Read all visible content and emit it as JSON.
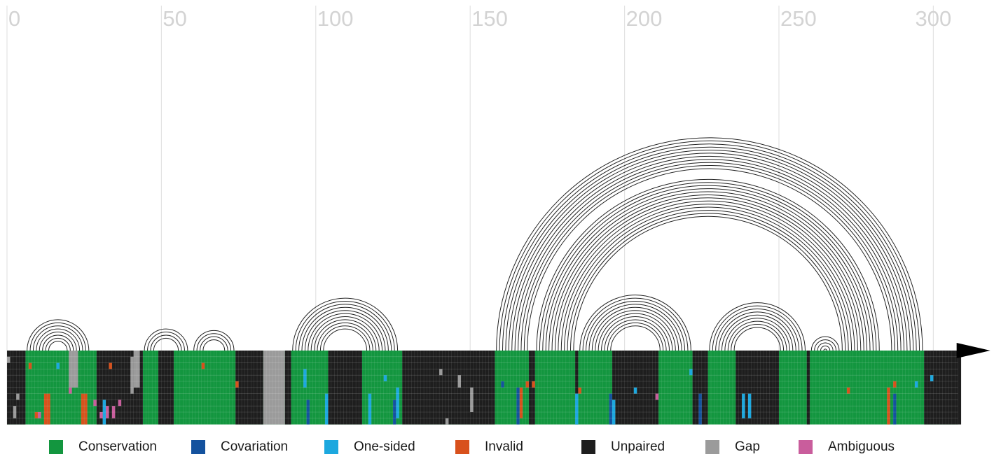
{
  "axis": {
    "ticks": [
      0,
      50,
      100,
      150,
      200,
      250,
      300
    ],
    "range": [
      0,
      308
    ]
  },
  "colors": {
    "Conservation": "#13963f",
    "Covariation": "#14529e",
    "One-sided": "#1ca8df",
    "Invalid": "#d8511c",
    "Unpaired": "#1e1e1e",
    "Gap": "#9b9b9b",
    "Ambiguous": "#c95d9c",
    "tick_text": "#d3d3d3",
    "gridline": "#e3e3e3",
    "arc": "#222222"
  },
  "legend": [
    {
      "label": "Conservation",
      "color": "#13963f"
    },
    {
      "label": "Covariation",
      "color": "#14529e"
    },
    {
      "label": "One-sided",
      "color": "#1ca8df"
    },
    {
      "label": "Invalid",
      "color": "#d8511c"
    },
    {
      "label": "Unpaired",
      "color": "#1e1e1e"
    },
    {
      "label": "Gap",
      "color": "#9b9b9b"
    },
    {
      "label": "Ambiguous",
      "color": "#c95d9c"
    }
  ],
  "sequences": 12,
  "helices": [
    {
      "name": "helix-1",
      "five_prime": [
        6,
        13
      ],
      "three_prime": [
        19,
        26
      ]
    },
    {
      "name": "helix-2",
      "five_prime": [
        44,
        47
      ],
      "three_prime": [
        54,
        58
      ]
    },
    {
      "name": "helix-3",
      "five_prime": [
        60,
        63
      ],
      "three_prime": [
        69,
        73
      ]
    },
    {
      "name": "helix-4",
      "five_prime": [
        92,
        102
      ],
      "three_prime": [
        115,
        126
      ]
    },
    {
      "name": "helix-5",
      "five_prime": [
        158,
        168
      ],
      "three_prime": [
        285,
        296
      ]
    },
    {
      "name": "helix-6",
      "five_prime": [
        171,
        183
      ],
      "three_prime": [
        270,
        282
      ]
    },
    {
      "name": "helix-7",
      "five_prime": [
        185,
        195
      ],
      "three_prime": [
        211,
        221
      ]
    },
    {
      "name": "helix-8",
      "five_prime": [
        227,
        235
      ],
      "three_prime": [
        250,
        258
      ]
    },
    {
      "name": "helix-9",
      "five_prime": [
        260,
        264
      ],
      "three_prime": [
        265,
        269
      ]
    }
  ],
  "gap_columns": [
    {
      "start": 83,
      "end": 89,
      "rows": "all"
    },
    {
      "start": 20,
      "end": 22,
      "rows": "upper"
    },
    {
      "start": 41,
      "end": 42,
      "rows": "upper"
    }
  ],
  "unpaired_columns": [
    {
      "start": 0,
      "end": 5
    },
    {
      "start": 29,
      "end": 43
    },
    {
      "start": 49,
      "end": 53
    },
    {
      "start": 74,
      "end": 82
    },
    {
      "start": 90,
      "end": 91
    },
    {
      "start": 104,
      "end": 114
    },
    {
      "start": 128,
      "end": 157
    },
    {
      "start": 169,
      "end": 170
    },
    {
      "start": 184,
      "end": 184
    },
    {
      "start": 196,
      "end": 210
    },
    {
      "start": 222,
      "end": 226
    },
    {
      "start": 236,
      "end": 249
    },
    {
      "start": 259,
      "end": 259
    },
    {
      "start": 297,
      "end": 308
    }
  ],
  "features": [
    {
      "type": "Invalid",
      "col": 7,
      "rows": [
        2,
        2
      ]
    },
    {
      "type": "Invalid",
      "col": 12,
      "rows": [
        7,
        11
      ]
    },
    {
      "type": "Invalid",
      "col": 13,
      "rows": [
        7,
        11
      ]
    },
    {
      "type": "Invalid",
      "col": 24,
      "rows": [
        7,
        11
      ]
    },
    {
      "type": "Invalid",
      "col": 25,
      "rows": [
        7,
        11
      ]
    },
    {
      "type": "Invalid",
      "col": 9,
      "rows": [
        10,
        10
      ]
    },
    {
      "type": "Invalid",
      "col": 33,
      "rows": [
        2,
        2
      ]
    },
    {
      "type": "Invalid",
      "col": 63,
      "rows": [
        2,
        2
      ]
    },
    {
      "type": "Invalid",
      "col": 74,
      "rows": [
        5,
        5
      ]
    },
    {
      "type": "Invalid",
      "col": 166,
      "rows": [
        6,
        10
      ]
    },
    {
      "type": "Invalid",
      "col": 168,
      "rows": [
        5,
        5
      ]
    },
    {
      "type": "Invalid",
      "col": 185,
      "rows": [
        6,
        6
      ]
    },
    {
      "type": "Invalid",
      "col": 272,
      "rows": [
        6,
        6
      ]
    },
    {
      "type": "Invalid",
      "col": 285,
      "rows": [
        6,
        11
      ]
    },
    {
      "type": "Invalid",
      "col": 287,
      "rows": [
        5,
        5
      ]
    },
    {
      "type": "Invalid",
      "col": 170,
      "rows": [
        5,
        5
      ]
    },
    {
      "type": "One-sided",
      "col": 16,
      "rows": [
        2,
        2
      ]
    },
    {
      "type": "One-sided",
      "col": 31,
      "rows": [
        8,
        11
      ]
    },
    {
      "type": "One-sided",
      "col": 96,
      "rows": [
        3,
        5
      ]
    },
    {
      "type": "One-sided",
      "col": 103,
      "rows": [
        7,
        11
      ]
    },
    {
      "type": "One-sided",
      "col": 117,
      "rows": [
        7,
        11
      ]
    },
    {
      "type": "One-sided",
      "col": 126,
      "rows": [
        6,
        10
      ]
    },
    {
      "type": "One-sided",
      "col": 122,
      "rows": [
        4,
        4
      ]
    },
    {
      "type": "One-sided",
      "col": 184,
      "rows": [
        7,
        11
      ]
    },
    {
      "type": "One-sided",
      "col": 196,
      "rows": [
        8,
        11
      ]
    },
    {
      "type": "One-sided",
      "col": 238,
      "rows": [
        7,
        10
      ]
    },
    {
      "type": "One-sided",
      "col": 240,
      "rows": [
        7,
        10
      ]
    },
    {
      "type": "One-sided",
      "col": 294,
      "rows": [
        5,
        5
      ]
    },
    {
      "type": "One-sided",
      "col": 299,
      "rows": [
        4,
        4
      ]
    },
    {
      "type": "One-sided",
      "col": 221,
      "rows": [
        3,
        3
      ]
    },
    {
      "type": "One-sided",
      "col": 203,
      "rows": [
        6,
        6
      ]
    },
    {
      "type": "Covariation",
      "col": 97,
      "rows": [
        8,
        11
      ]
    },
    {
      "type": "Covariation",
      "col": 125,
      "rows": [
        8,
        11
      ]
    },
    {
      "type": "Covariation",
      "col": 165,
      "rows": [
        6,
        11
      ]
    },
    {
      "type": "Covariation",
      "col": 195,
      "rows": [
        7,
        11
      ]
    },
    {
      "type": "Covariation",
      "col": 224,
      "rows": [
        7,
        11
      ]
    },
    {
      "type": "Covariation",
      "col": 287,
      "rows": [
        7,
        11
      ]
    },
    {
      "type": "Covariation",
      "col": 160,
      "rows": [
        5,
        5
      ]
    },
    {
      "type": "Ambiguous",
      "col": 10,
      "rows": [
        10,
        10
      ]
    },
    {
      "type": "Ambiguous",
      "col": 20,
      "rows": [
        6,
        6
      ]
    },
    {
      "type": "Ambiguous",
      "col": 28,
      "rows": [
        8,
        8
      ]
    },
    {
      "type": "Ambiguous",
      "col": 30,
      "rows": [
        10,
        10
      ]
    },
    {
      "type": "Ambiguous",
      "col": 32,
      "rows": [
        9,
        10
      ]
    },
    {
      "type": "Ambiguous",
      "col": 34,
      "rows": [
        9,
        10
      ]
    },
    {
      "type": "Ambiguous",
      "col": 36,
      "rows": [
        8,
        8
      ]
    },
    {
      "type": "Ambiguous",
      "col": 210,
      "rows": [
        7,
        7
      ]
    },
    {
      "type": "Gap",
      "col": 0,
      "rows": [
        1,
        1
      ]
    },
    {
      "type": "Gap",
      "col": 3,
      "rows": [
        7,
        7
      ]
    },
    {
      "type": "Gap",
      "col": 2,
      "rows": [
        9,
        10
      ]
    },
    {
      "type": "Gap",
      "col": 40,
      "rows": [
        1,
        6
      ]
    },
    {
      "type": "Gap",
      "col": 140,
      "rows": [
        3,
        3
      ]
    },
    {
      "type": "Gap",
      "col": 146,
      "rows": [
        4,
        5
      ]
    },
    {
      "type": "Gap",
      "col": 150,
      "rows": [
        6,
        9
      ]
    },
    {
      "type": "Gap",
      "col": 142,
      "rows": [
        11,
        11
      ]
    }
  ]
}
